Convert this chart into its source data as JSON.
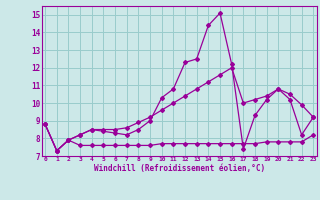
{
  "xlabel": "Windchill (Refroidissement éolien,°C)",
  "background_color": "#cce8e8",
  "grid_color": "#99cccc",
  "line_color": "#990099",
  "x_values": [
    0,
    1,
    2,
    3,
    4,
    5,
    6,
    7,
    8,
    9,
    10,
    11,
    12,
    13,
    14,
    15,
    16,
    17,
    18,
    19,
    20,
    21,
    22,
    23
  ],
  "y_main": [
    8.8,
    7.3,
    7.9,
    8.2,
    8.5,
    8.4,
    8.3,
    8.2,
    8.5,
    9.0,
    10.3,
    10.8,
    12.3,
    12.5,
    14.4,
    15.1,
    12.2,
    7.4,
    9.3,
    10.2,
    10.8,
    10.2,
    8.2,
    9.2
  ],
  "y_min": [
    8.8,
    7.3,
    7.9,
    7.6,
    7.6,
    7.6,
    7.6,
    7.6,
    7.6,
    7.6,
    7.7,
    7.7,
    7.7,
    7.7,
    7.7,
    7.7,
    7.7,
    7.7,
    7.7,
    7.8,
    7.8,
    7.8,
    7.8,
    8.2
  ],
  "y_max": [
    8.8,
    7.3,
    7.9,
    8.2,
    8.5,
    8.5,
    8.5,
    8.6,
    8.9,
    9.2,
    9.6,
    10.0,
    10.4,
    10.8,
    11.2,
    11.6,
    12.0,
    10.0,
    10.2,
    10.4,
    10.8,
    10.5,
    9.9,
    9.2
  ],
  "ylim": [
    7,
    15.5
  ],
  "xlim": [
    -0.3,
    23.3
  ],
  "yticks": [
    7,
    8,
    9,
    10,
    11,
    12,
    13,
    14,
    15
  ],
  "xticks": [
    0,
    1,
    2,
    3,
    4,
    5,
    6,
    7,
    8,
    9,
    10,
    11,
    12,
    13,
    14,
    15,
    16,
    17,
    18,
    19,
    20,
    21,
    22,
    23
  ]
}
